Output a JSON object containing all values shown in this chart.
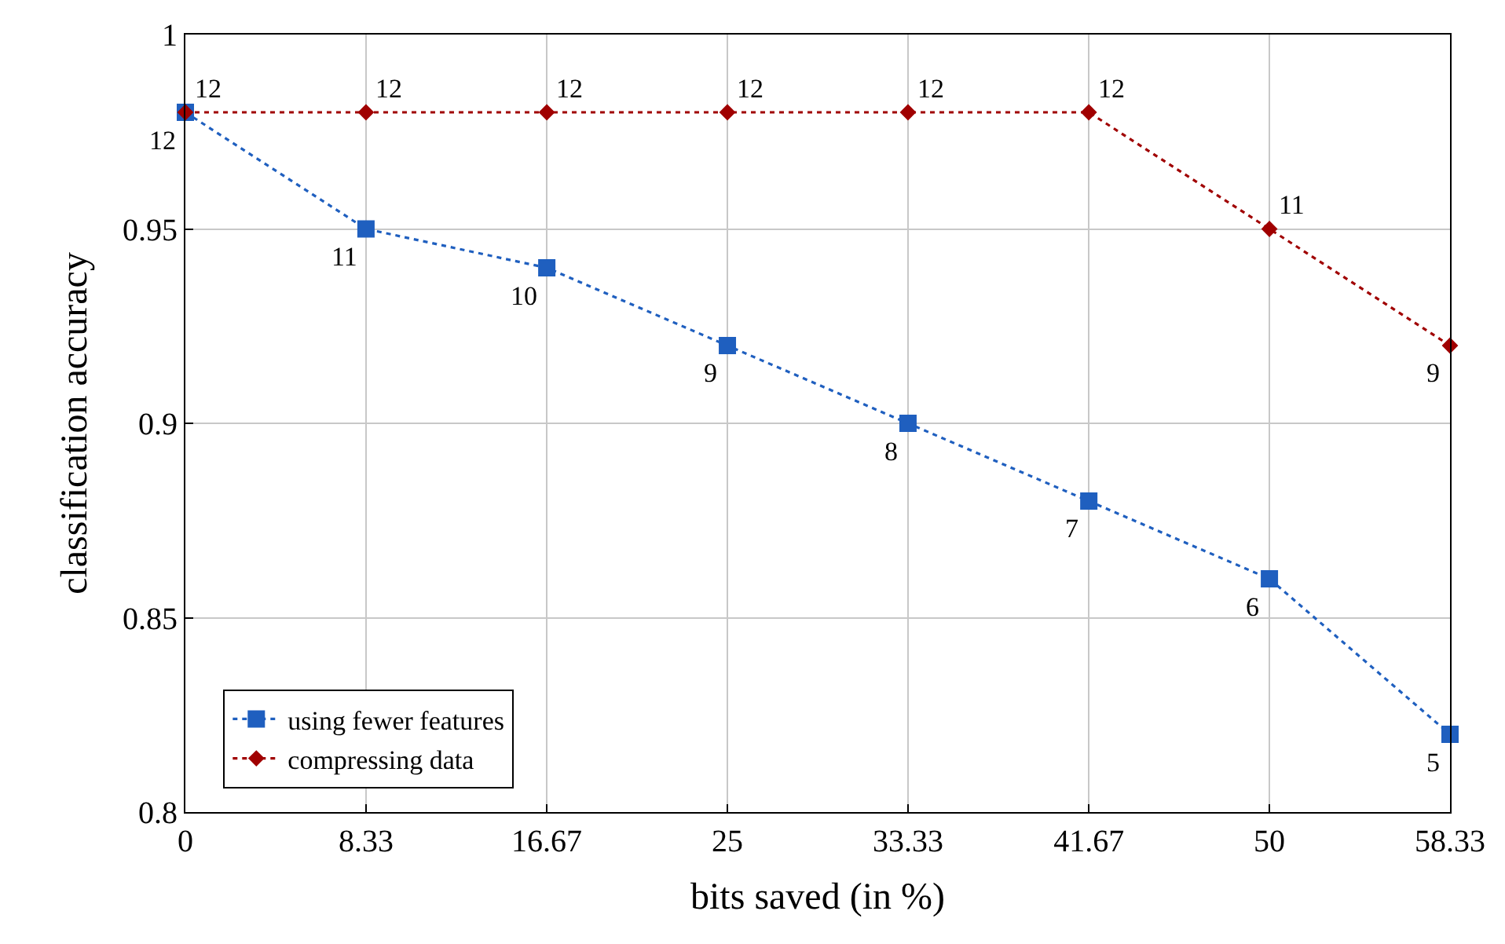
{
  "chart_data": {
    "type": "line",
    "xlabel": "bits saved (in %)",
    "ylabel": "classification accuracy",
    "x": [
      0,
      8.33,
      16.67,
      25,
      33.33,
      41.67,
      50,
      58.33
    ],
    "series": [
      {
        "name": "using fewer features",
        "color": "#1f5fbf",
        "marker": "square",
        "values": [
          0.98,
          0.95,
          0.94,
          0.92,
          0.9,
          0.88,
          0.86,
          0.82
        ]
      },
      {
        "name": "compressing data",
        "color": "#a00000",
        "marker": "diamond",
        "values": [
          0.98,
          0.98,
          0.98,
          0.98,
          0.98,
          0.98,
          0.95,
          0.92
        ]
      }
    ],
    "annotations": [
      {
        "text": "12",
        "x": 0,
        "y": 0.98
      },
      {
        "text": "11",
        "x": 8.33,
        "y": 0.95
      },
      {
        "text": "10",
        "x": 16.67,
        "y": 0.94
      },
      {
        "text": "9",
        "x": 25,
        "y": 0.92
      },
      {
        "text": "8",
        "x": 33.33,
        "y": 0.9
      },
      {
        "text": "7",
        "x": 41.67,
        "y": 0.88
      },
      {
        "text": "6",
        "x": 50,
        "y": 0.86
      },
      {
        "text": "5",
        "x": 58.33,
        "y": 0.82
      },
      {
        "text": "12",
        "x": 0,
        "y": 0.98
      },
      {
        "text": "12",
        "x": 8.33,
        "y": 0.98
      },
      {
        "text": "12",
        "x": 16.67,
        "y": 0.98
      },
      {
        "text": "12",
        "x": 25,
        "y": 0.98
      },
      {
        "text": "12",
        "x": 33.33,
        "y": 0.98
      },
      {
        "text": "12",
        "x": 41.67,
        "y": 0.98
      },
      {
        "text": "11",
        "x": 50,
        "y": 0.95
      },
      {
        "text": "9",
        "x": 58.33,
        "y": 0.92
      }
    ],
    "xlim": [
      0,
      58.33
    ],
    "xticks": [
      0,
      8.33,
      16.67,
      25,
      33.33,
      41.67,
      50,
      58.33
    ],
    "ylim": [
      0.8,
      1
    ],
    "yticks": [
      0.8,
      0.85,
      0.9,
      0.95,
      1
    ],
    "grid": true,
    "legend": "bottom left",
    "line_style": "dotted"
  }
}
